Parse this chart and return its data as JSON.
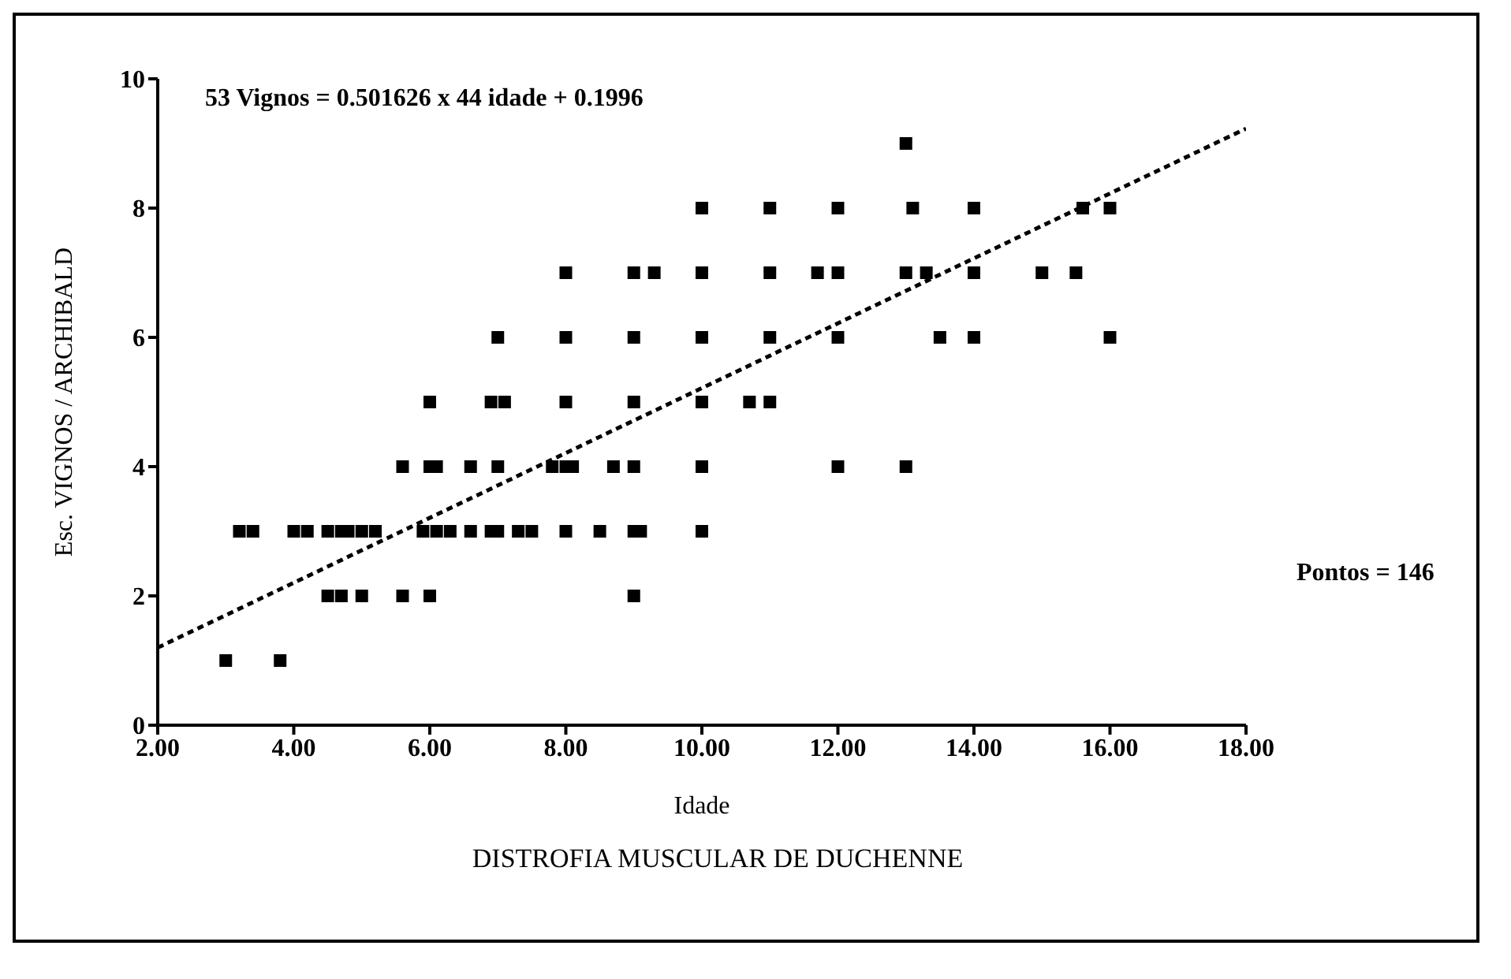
{
  "chart_data": {
    "type": "scatter",
    "title": "DISTROFIA MUSCULAR DE DUCHENNE",
    "xlabel": "Idade",
    "ylabel": "Esc. VIGNOS / ARCHIBALD",
    "annotations": [
      "53 Vignos = 0.501626 x 44 idade + 0.1996",
      "Pontos = 146"
    ],
    "xlim": [
      2,
      18
    ],
    "xticks": [
      {
        "value": 2,
        "label": "2.00"
      },
      {
        "value": 4,
        "label": "4.00"
      },
      {
        "value": 6,
        "label": "6.00"
      },
      {
        "value": 8,
        "label": "8.00"
      },
      {
        "value": 10,
        "label": "10.00"
      },
      {
        "value": 12,
        "label": "12.00"
      },
      {
        "value": 14,
        "label": "14.00"
      },
      {
        "value": 16,
        "label": "16.00"
      },
      {
        "value": 18,
        "label": "18.00"
      }
    ],
    "ylim": [
      0,
      10
    ],
    "yticks": [
      0,
      2,
      4,
      6,
      8,
      10
    ],
    "marker": "square",
    "series": [
      {
        "color": "#000000",
        "x": [
          3.0,
          3.8,
          4.5,
          4.7,
          5,
          5.6,
          6,
          9,
          3.2,
          3.4,
          4,
          4.2,
          4.5,
          4.7,
          4.8,
          5,
          5.2,
          5.9,
          6.1,
          6.3,
          6.6,
          6.9,
          7,
          7.3,
          7.5,
          8,
          8.5,
          9,
          9.1,
          10,
          5.6,
          6,
          6.1,
          6.6,
          7,
          7.8,
          8,
          8.1,
          8.7,
          9,
          10,
          12,
          13,
          6,
          6.9,
          7.1,
          8,
          9,
          10,
          10.7,
          11,
          7,
          8,
          9,
          10,
          11,
          12,
          13.5,
          14,
          16,
          8,
          9,
          9.3,
          10,
          11,
          11.7,
          12,
          13,
          13.3,
          14,
          15,
          15.5,
          10,
          11,
          12,
          13.1,
          14,
          15.6,
          16,
          13
        ],
        "values": [
          1,
          1,
          2,
          2,
          2,
          2,
          2,
          2,
          3,
          3,
          3,
          3,
          3,
          3,
          3,
          3,
          3,
          3,
          3,
          3,
          3,
          3,
          3,
          3,
          3,
          3,
          3,
          3,
          3,
          3,
          4,
          4,
          4,
          4,
          4,
          4,
          4,
          4,
          4,
          4,
          4,
          4,
          4,
          5,
          5,
          5,
          5,
          5,
          5,
          5,
          5,
          6,
          6,
          6,
          6,
          6,
          6,
          6,
          6,
          6,
          7,
          7,
          7,
          7,
          7,
          7,
          7,
          7,
          7,
          7,
          7,
          7,
          8,
          8,
          8,
          8,
          8,
          8,
          8,
          9
        ]
      },
      {
        "type": "line",
        "color": "#000000",
        "line_style": "dashed",
        "marker": "none",
        "x": [
          2,
          18
        ],
        "values": [
          1.2,
          9.23
        ]
      }
    ]
  }
}
